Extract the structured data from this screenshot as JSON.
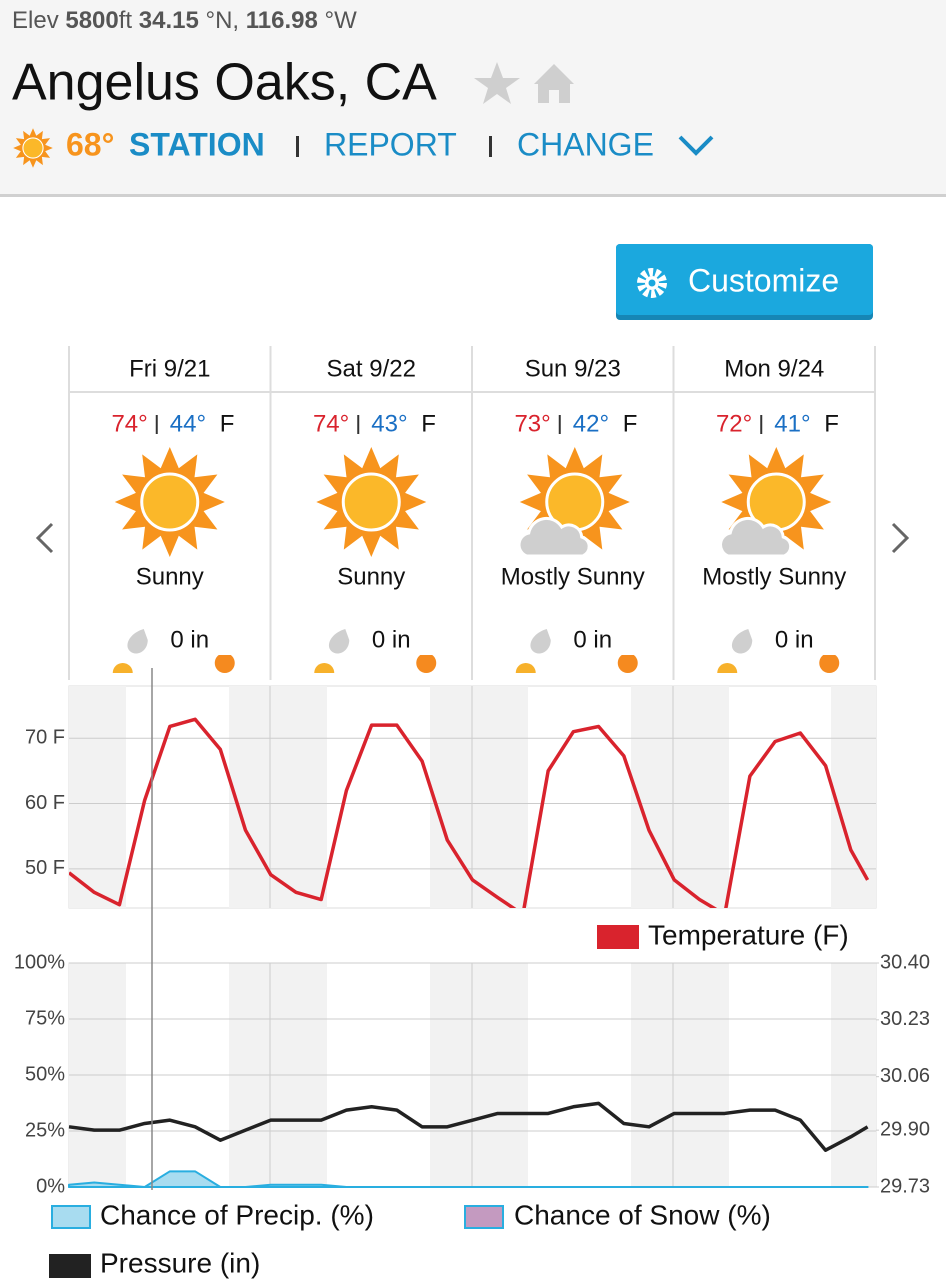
{
  "header": {
    "elev_label": "Elev",
    "elevation": "5800",
    "elev_unit": "ft",
    "lat": "34.15",
    "lat_unit": "°N,",
    "lon": "116.98",
    "lon_unit": "°W",
    "title": "Angelus Oaks, CA",
    "current_temp": "68°",
    "links": [
      "STATION",
      "REPORT",
      "CHANGE"
    ]
  },
  "customize_button": "Customize",
  "days": [
    {
      "name": "Fri 9/21",
      "high": "74°",
      "low": "44°",
      "unit": "F",
      "condition": "Sunny",
      "precip": "0 in"
    },
    {
      "name": "Sat 9/22",
      "high": "74°",
      "low": "43°",
      "unit": "F",
      "condition": "Sunny",
      "precip": "0 in"
    },
    {
      "name": "Sun 9/23",
      "high": "73°",
      "low": "42°",
      "unit": "F",
      "condition": "Mostly Sunny",
      "precip": "0 in"
    },
    {
      "name": "Mon 9/24",
      "high": "72°",
      "low": "41°",
      "unit": "F",
      "condition": "Mostly Sunny",
      "precip": "0 in"
    }
  ],
  "chart_data": [
    {
      "type": "line",
      "x": [
        0,
        3,
        6,
        9,
        12,
        15,
        18,
        21,
        24,
        27,
        30,
        33,
        36,
        39,
        42,
        45,
        48,
        51,
        54,
        57,
        60,
        63,
        66,
        69,
        72,
        75,
        78,
        81,
        84,
        87,
        90,
        93,
        95
      ],
      "xlim": [
        0,
        96
      ],
      "ylim": [
        44,
        78
      ],
      "yticks": [
        {
          "value": 50,
          "label": "50 F"
        },
        {
          "value": 60,
          "label": "60 F"
        },
        {
          "value": 70,
          "label": "70 F"
        }
      ],
      "grid": true,
      "series": [
        {
          "name": "Temperature (F)",
          "color": "#d9232d",
          "values": [
            49.4,
            46.4,
            44.5,
            60.5,
            71.8,
            72.9,
            68.3,
            55.9,
            49.1,
            46.4,
            45.3,
            62,
            72,
            72,
            66.5,
            54.4,
            48.3,
            45.6,
            43,
            65,
            71,
            71.8,
            67.3,
            55.9,
            48.3,
            45.3,
            43,
            64.2,
            69.5,
            70.8,
            65.8,
            52.9,
            48.3
          ]
        }
      ]
    },
    {
      "type": "line",
      "x": [
        0,
        3,
        6,
        9,
        12,
        15,
        18,
        21,
        24,
        27,
        30,
        33,
        36,
        39,
        42,
        45,
        48,
        51,
        54,
        57,
        60,
        63,
        66,
        69,
        72,
        75,
        78,
        81,
        84,
        87,
        90,
        93,
        95
      ],
      "xlim": [
        0,
        96
      ],
      "ylim": [
        0,
        100
      ],
      "yticks": [
        {
          "value": 0,
          "label": "0%"
        },
        {
          "value": 25,
          "label": "25%"
        },
        {
          "value": 50,
          "label": "50%"
        },
        {
          "value": 75,
          "label": "75%"
        },
        {
          "value": 100,
          "label": "100%"
        }
      ],
      "y2lim": [
        29.73,
        30.4
      ],
      "y2ticks": [
        29.73,
        {
          "value": 29.9,
          "label": "29.90"
        },
        30.06,
        30.23,
        {
          "value": 30.4,
          "label": "30.40"
        }
      ],
      "grid": true,
      "series": [
        {
          "name": "Chance of Snow (%)",
          "color": "#29aee0",
          "fill": "#c49ac0",
          "area": true,
          "values": [
            0,
            0,
            0,
            0,
            0,
            0,
            0,
            0,
            0,
            0,
            0,
            0,
            0,
            0,
            0,
            0,
            0,
            0,
            0,
            0,
            0,
            0,
            0,
            0,
            0,
            0,
            0,
            0,
            0,
            0,
            0,
            0,
            0
          ]
        },
        {
          "name": "Chance of Precip. (%)",
          "color": "#29aee0",
          "fill": "#a8dcf0",
          "area": true,
          "values": [
            1,
            2,
            1,
            0,
            7,
            7,
            0,
            0,
            1,
            1,
            1,
            0,
            0,
            0,
            0,
            0,
            0,
            0,
            0,
            0,
            0,
            0,
            0,
            0,
            0,
            0,
            0,
            0,
            0,
            0,
            0,
            0,
            0
          ]
        },
        {
          "name": "Pressure (in)",
          "color": "#222222",
          "axis": "y2",
          "values": [
            29.91,
            29.9,
            29.9,
            29.92,
            29.93,
            29.91,
            29.87,
            29.9,
            29.93,
            29.93,
            29.93,
            29.96,
            29.97,
            29.96,
            29.91,
            29.91,
            29.93,
            29.95,
            29.95,
            29.95,
            29.97,
            29.98,
            29.92,
            29.91,
            29.95,
            29.95,
            29.95,
            29.96,
            29.96,
            29.93,
            29.84,
            29.88,
            29.91
          ]
        }
      ]
    }
  ]
}
